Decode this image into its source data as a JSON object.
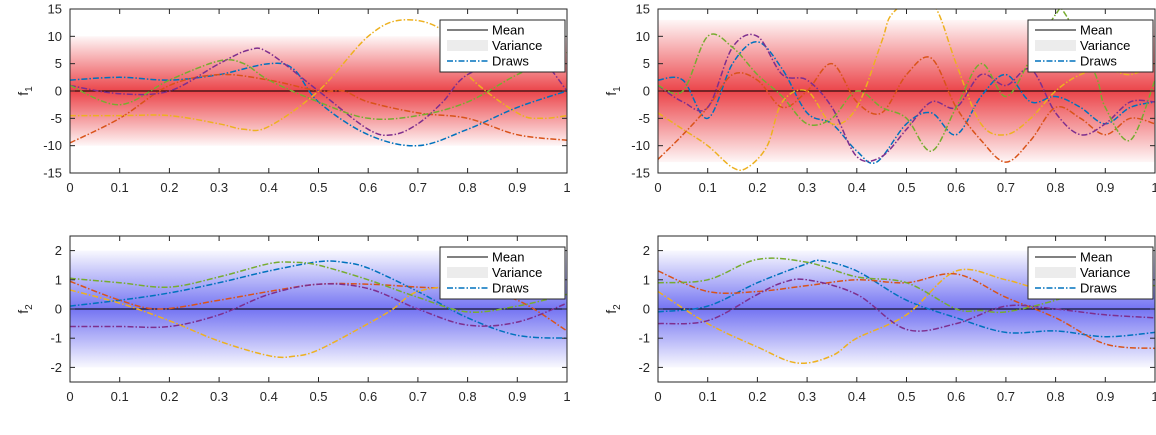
{
  "chart_data": [
    {
      "type": "line",
      "ylabel": "f",
      "ylabel_sub": "1",
      "xlim": [
        0,
        1
      ],
      "ylim": [
        -15,
        15
      ],
      "xticks": [
        "0",
        "0.1",
        "0.2",
        "0.3",
        "0.4",
        "0.5",
        "0.6",
        "0.7",
        "0.8",
        "0.9",
        "1"
      ],
      "yticks": [
        "-15",
        "-10",
        "-5",
        "0",
        "5",
        "10",
        "15"
      ],
      "variance_band": [
        -10,
        10
      ],
      "band_color": "#e8242a",
      "mean": 0,
      "legend": [
        "Mean",
        "Variance",
        "Draws"
      ],
      "legend_position": "top-right",
      "series": [
        {
          "color": "#0072bd",
          "x": [
            0,
            0.1,
            0.2,
            0.3,
            0.4,
            0.45,
            0.5,
            0.6,
            0.7,
            0.8,
            0.9,
            1
          ],
          "y": [
            2,
            2.5,
            2,
            3,
            5,
            4,
            -2,
            -8,
            -10,
            -7,
            -3,
            0
          ]
        },
        {
          "color": "#d95319",
          "x": [
            0,
            0.1,
            0.2,
            0.3,
            0.4,
            0.5,
            0.55,
            0.6,
            0.7,
            0.8,
            0.9,
            1
          ],
          "y": [
            -9.5,
            -5,
            1,
            3,
            2,
            0,
            0,
            -2,
            -4,
            -5,
            -8,
            -9
          ]
        },
        {
          "color": "#edb120",
          "x": [
            0,
            0.1,
            0.2,
            0.3,
            0.35,
            0.4,
            0.5,
            0.6,
            0.67,
            0.75,
            0.8,
            0.9,
            0.95,
            1
          ],
          "y": [
            -4.5,
            -4.5,
            -4.5,
            -6,
            -7,
            -6.5,
            0,
            10,
            13,
            11,
            3,
            -4,
            -5,
            -4.5
          ]
        },
        {
          "color": "#7e2f8e",
          "x": [
            0,
            0.1,
            0.2,
            0.3,
            0.36,
            0.4,
            0.5,
            0.6,
            0.65,
            0.7,
            0.75,
            0.8,
            0.9,
            0.95,
            1
          ],
          "y": [
            1,
            -0.5,
            0,
            5,
            7.5,
            7,
            0,
            -7,
            -8,
            -6,
            -2,
            3,
            6,
            5.5,
            0
          ]
        },
        {
          "color": "#77ac30",
          "x": [
            0,
            0.1,
            0.2,
            0.3,
            0.35,
            0.4,
            0.5,
            0.6,
            0.7,
            0.8,
            0.9,
            1
          ],
          "y": [
            1,
            -2.5,
            2,
            5.5,
            5,
            2,
            -2,
            -5,
            -4.5,
            -2,
            3,
            7
          ]
        }
      ]
    },
    {
      "type": "line",
      "ylabel": "f",
      "ylabel_sub": "1",
      "xlim": [
        0,
        1
      ],
      "ylim": [
        -15,
        15
      ],
      "xticks": [
        "0",
        "0.1",
        "0.2",
        "0.3",
        "0.4",
        "0.5",
        "0.6",
        "0.7",
        "0.8",
        "0.9",
        "1"
      ],
      "yticks": [
        "-15",
        "-10",
        "-5",
        "0",
        "5",
        "10",
        "15"
      ],
      "variance_band": [
        -13,
        13
      ],
      "band_color": "#e8242a",
      "mean": 0,
      "legend": [
        "Mean",
        "Variance",
        "Draws"
      ],
      "legend_position": "top-right",
      "series": [
        {
          "color": "#0072bd",
          "x": [
            0,
            0.05,
            0.1,
            0.15,
            0.2,
            0.25,
            0.3,
            0.35,
            0.4,
            0.44,
            0.5,
            0.55,
            0.6,
            0.65,
            0.7,
            0.75,
            0.8,
            0.85,
            0.9,
            0.95,
            1
          ],
          "y": [
            2,
            2,
            -5,
            5,
            9,
            4,
            -4,
            -6,
            -11,
            -13,
            -6,
            -4,
            -8,
            -1,
            3,
            -2,
            -1,
            -3,
            -6,
            -3,
            -2
          ]
        },
        {
          "color": "#d95319",
          "x": [
            0,
            0.05,
            0.1,
            0.15,
            0.2,
            0.25,
            0.3,
            0.35,
            0.4,
            0.45,
            0.5,
            0.55,
            0.6,
            0.65,
            0.7,
            0.75,
            0.8,
            0.85,
            0.9,
            0.95,
            1
          ],
          "y": [
            -12.5,
            -8,
            -3,
            3,
            2,
            -3,
            0,
            5,
            -2,
            -4,
            3,
            6,
            -3,
            -9,
            -13,
            -9,
            -3,
            -5,
            -8,
            -5,
            -6
          ]
        },
        {
          "color": "#edb120",
          "x": [
            0,
            0.05,
            0.1,
            0.15,
            0.18,
            0.22,
            0.25,
            0.3,
            0.35,
            0.4,
            0.45,
            0.47,
            0.52,
            0.56,
            0.6,
            0.65,
            0.7,
            0.75,
            0.8,
            0.85,
            0.9,
            0.95,
            1
          ],
          "y": [
            -4,
            -7,
            -10,
            -14,
            -14,
            -10,
            -2,
            0,
            -6,
            -3,
            9,
            14,
            17,
            15,
            5,
            -6,
            -8,
            -5,
            0,
            3,
            4,
            3,
            5
          ]
        },
        {
          "color": "#7e2f8e",
          "x": [
            0,
            0.05,
            0.1,
            0.15,
            0.2,
            0.25,
            0.3,
            0.35,
            0.4,
            0.45,
            0.5,
            0.55,
            0.6,
            0.65,
            0.7,
            0.75,
            0.8,
            0.85,
            0.9,
            0.95,
            1
          ],
          "y": [
            1,
            -2,
            -3,
            8,
            10,
            3,
            2,
            -3,
            -12,
            -12,
            -7,
            -2,
            -3,
            3,
            1,
            4,
            -4,
            -8,
            -6,
            -2,
            -2
          ]
        },
        {
          "color": "#77ac30",
          "x": [
            0,
            0.05,
            0.1,
            0.15,
            0.2,
            0.25,
            0.3,
            0.35,
            0.4,
            0.45,
            0.5,
            0.55,
            0.6,
            0.65,
            0.7,
            0.75,
            0.8,
            0.82,
            0.88,
            0.9,
            0.95,
            1
          ],
          "y": [
            1,
            0,
            10,
            8,
            3,
            -1,
            -6,
            -5,
            0,
            -3,
            -5,
            -11,
            -3,
            5,
            -1,
            6,
            14,
            14,
            3,
            -3,
            -9,
            2
          ]
        }
      ]
    },
    {
      "type": "line",
      "ylabel": "f",
      "ylabel_sub": "2",
      "xlim": [
        0,
        1
      ],
      "ylim": [
        -2.5,
        2.5
      ],
      "xticks": [
        "0",
        "0.1",
        "0.2",
        "0.3",
        "0.4",
        "0.5",
        "0.6",
        "0.7",
        "0.8",
        "0.9",
        "1"
      ],
      "yticks": [
        "-2",
        "-1",
        "0",
        "1",
        "2"
      ],
      "variance_band": [
        -2,
        2
      ],
      "band_color": "#5c5cf0",
      "mean": 0,
      "legend": [
        "Mean",
        "Variance",
        "Draws"
      ],
      "legend_position": "top-right",
      "series": [
        {
          "color": "#0072bd",
          "x": [
            0,
            0.1,
            0.2,
            0.3,
            0.4,
            0.5,
            0.55,
            0.6,
            0.7,
            0.8,
            0.9,
            1
          ],
          "y": [
            0.1,
            0.3,
            0.55,
            0.9,
            1.3,
            1.62,
            1.6,
            1.4,
            0.6,
            -0.3,
            -0.9,
            -1.0
          ]
        },
        {
          "color": "#d95319",
          "x": [
            0,
            0.1,
            0.18,
            0.3,
            0.4,
            0.5,
            0.6,
            0.7,
            0.8,
            0.9,
            1
          ],
          "y": [
            0.95,
            0.3,
            0.0,
            0.3,
            0.6,
            0.85,
            0.85,
            0.75,
            0.65,
            0.3,
            -0.75
          ]
        },
        {
          "color": "#edb120",
          "x": [
            0,
            0.1,
            0.2,
            0.3,
            0.4,
            0.45,
            0.5,
            0.6,
            0.65,
            0.7,
            0.8,
            0.9,
            1
          ],
          "y": [
            0.65,
            0.2,
            -0.4,
            -1.1,
            -1.6,
            -1.62,
            -1.4,
            -0.5,
            0,
            0.6,
            0.8,
            0.65,
            0.7
          ]
        },
        {
          "color": "#7e2f8e",
          "x": [
            0,
            0.1,
            0.2,
            0.3,
            0.4,
            0.5,
            0.6,
            0.7,
            0.8,
            0.9,
            1
          ],
          "y": [
            -0.6,
            -0.6,
            -0.6,
            -0.2,
            0.5,
            0.85,
            0.7,
            0.0,
            -0.55,
            -0.45,
            0.2
          ]
        },
        {
          "color": "#77ac30",
          "x": [
            0,
            0.1,
            0.2,
            0.3,
            0.4,
            0.45,
            0.5,
            0.6,
            0.7,
            0.8,
            0.9,
            1
          ],
          "y": [
            1.05,
            0.9,
            0.75,
            1.1,
            1.55,
            1.6,
            1.5,
            1.0,
            0.4,
            -0.1,
            0.1,
            0.5
          ]
        }
      ]
    },
    {
      "type": "line",
      "ylabel": "f",
      "ylabel_sub": "2",
      "xlim": [
        0,
        1
      ],
      "ylim": [
        -2.5,
        2.5
      ],
      "xticks": [
        "0",
        "0.1",
        "0.2",
        "0.3",
        "0.4",
        "0.5",
        "0.6",
        "0.7",
        "0.8",
        "0.9",
        "1"
      ],
      "yticks": [
        "-2",
        "-1",
        "0",
        "1",
        "2"
      ],
      "variance_band": [
        -2,
        2
      ],
      "band_color": "#5c5cf0",
      "mean": 0,
      "legend": [
        "Mean",
        "Variance",
        "Draws"
      ],
      "legend_position": "top-right",
      "series": [
        {
          "color": "#0072bd",
          "x": [
            0,
            0.1,
            0.2,
            0.3,
            0.33,
            0.4,
            0.5,
            0.6,
            0.7,
            0.8,
            0.9,
            1
          ],
          "y": [
            -0.1,
            0.1,
            0.9,
            1.55,
            1.65,
            1.3,
            0.3,
            -0.3,
            -0.8,
            -0.75,
            -0.95,
            -0.8
          ]
        },
        {
          "color": "#d95319",
          "x": [
            0,
            0.1,
            0.2,
            0.3,
            0.4,
            0.5,
            0.6,
            0.7,
            0.8,
            0.9,
            1
          ],
          "y": [
            1.3,
            0.6,
            0.6,
            0.8,
            1.0,
            0.9,
            1.2,
            0.4,
            -0.3,
            -1.2,
            -1.35
          ]
        },
        {
          "color": "#edb120",
          "x": [
            0,
            0.1,
            0.2,
            0.28,
            0.35,
            0.4,
            0.5,
            0.6,
            0.7,
            0.8,
            0.9,
            1
          ],
          "y": [
            0.6,
            -0.5,
            -1.3,
            -1.85,
            -1.6,
            -1.0,
            -0.2,
            1.3,
            1.0,
            0.6,
            1.0,
            1.2
          ]
        },
        {
          "color": "#7e2f8e",
          "x": [
            0,
            0.1,
            0.2,
            0.25,
            0.3,
            0.4,
            0.5,
            0.6,
            0.7,
            0.8,
            0.9,
            1
          ],
          "y": [
            -0.5,
            -0.4,
            0.5,
            0.9,
            1.0,
            0.5,
            -0.7,
            -0.5,
            0.1,
            0.0,
            -0.2,
            -0.3
          ]
        },
        {
          "color": "#77ac30",
          "x": [
            0,
            0.1,
            0.2,
            0.3,
            0.4,
            0.5,
            0.6,
            0.65,
            0.7,
            0.8,
            0.9,
            1
          ],
          "y": [
            0.9,
            1.0,
            1.7,
            1.6,
            1.1,
            0.9,
            0.0,
            -0.05,
            -0.1,
            0.3,
            0.9,
            0.8
          ]
        }
      ]
    }
  ]
}
